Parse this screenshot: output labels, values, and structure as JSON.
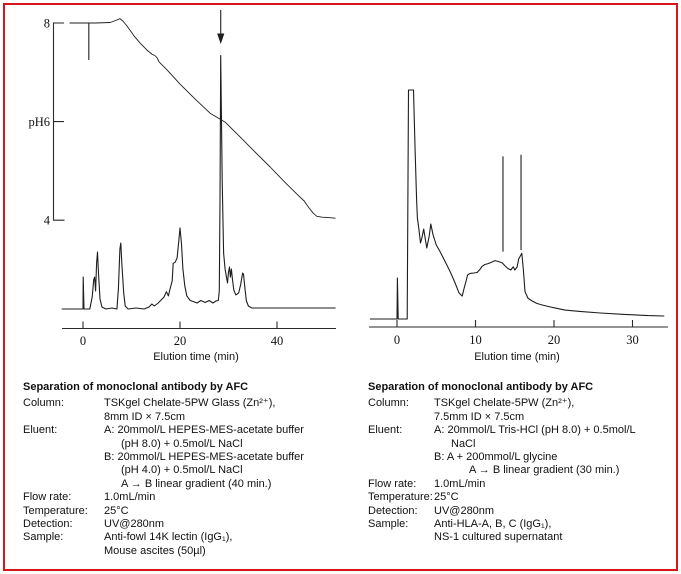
{
  "frame": {
    "border_color": "#d8161a"
  },
  "chart_data": [
    {
      "type": "line",
      "title": "",
      "xlabel": "Elution time (min)",
      "x_ticks": [
        0,
        20,
        40
      ],
      "x_tick_labels": [
        "0",
        "20",
        "40"
      ],
      "x_range": [
        -4.3,
        52
      ],
      "ylabel": "",
      "y_units": "UV@280nm relative absorbance (0-100, arbitrary)",
      "grid": false,
      "ph_axis": {
        "range": [
          4,
          8
        ],
        "tick_values": [
          8,
          6,
          4
        ],
        "tick_labels": [
          "8",
          "pH6",
          "4"
        ]
      },
      "series": [
        {
          "name": "uv-280nm-trace",
          "points": [
            [
              -4.3,
              0
            ],
            [
              -0.6,
              0
            ],
            [
              0,
              0
            ],
            [
              0.05,
              12.7
            ],
            [
              0.2,
              0
            ],
            [
              1.4,
              0
            ],
            [
              1.9,
              4.8
            ],
            [
              2.2,
              11.6
            ],
            [
              2.4,
              12.7
            ],
            [
              2.6,
              7.2
            ],
            [
              2.8,
              18.3
            ],
            [
              3.0,
              22.7
            ],
            [
              3.2,
              14.3
            ],
            [
              3.5,
              4.0
            ],
            [
              3.9,
              0.8
            ],
            [
              4.7,
              0
            ],
            [
              6.0,
              0.4
            ],
            [
              7.0,
              0
            ],
            [
              7.3,
              8.0
            ],
            [
              7.6,
              23.9
            ],
            [
              7.8,
              26.3
            ],
            [
              8.0,
              18.3
            ],
            [
              8.4,
              6.4
            ],
            [
              8.7,
              1.2
            ],
            [
              9.3,
              0
            ],
            [
              10.9,
              0.4
            ],
            [
              12.6,
              0
            ],
            [
              13.6,
              0.8
            ],
            [
              14.2,
              2.0
            ],
            [
              14.7,
              1.2
            ],
            [
              15.5,
              2.4
            ],
            [
              16.1,
              3.6
            ],
            [
              16.7,
              4.8
            ],
            [
              17.2,
              6.9
            ],
            [
              17.6,
              5.2
            ],
            [
              17.9,
              7.6
            ],
            [
              18.4,
              11.2
            ],
            [
              18.6,
              18.2
            ],
            [
              19.0,
              18.6
            ],
            [
              19.4,
              20.3
            ],
            [
              19.7,
              25.9
            ],
            [
              20.0,
              32.3
            ],
            [
              20.3,
              25.9
            ],
            [
              20.6,
              15.9
            ],
            [
              21.0,
              9.2
            ],
            [
              21.4,
              5.2
            ],
            [
              22.1,
              3.4
            ],
            [
              22.7,
              3.0
            ],
            [
              23.5,
              2.4
            ],
            [
              24.3,
              3.4
            ],
            [
              25.2,
              2.6
            ],
            [
              26.0,
              3.4
            ],
            [
              26.8,
              2.4
            ],
            [
              27.4,
              3.2
            ],
            [
              27.9,
              3.4
            ],
            [
              28.1,
              7.2
            ],
            [
              28.25,
              43.0
            ],
            [
              28.4,
              101.0
            ],
            [
              28.7,
              51.0
            ],
            [
              29.0,
              22.3
            ],
            [
              29.3,
              15.9
            ],
            [
              29.6,
              12.4
            ],
            [
              29.8,
              10.4
            ],
            [
              30.0,
              14.7
            ],
            [
              30.2,
              16.7
            ],
            [
              30.4,
              12.7
            ],
            [
              30.6,
              15.9
            ],
            [
              30.8,
              12.0
            ],
            [
              31.1,
              7.6
            ],
            [
              31.5,
              5.6
            ],
            [
              32.1,
              6.4
            ],
            [
              32.5,
              9.6
            ],
            [
              32.9,
              14.3
            ],
            [
              33.1,
              13.9
            ],
            [
              33.4,
              8.0
            ],
            [
              33.7,
              3.2
            ],
            [
              34.1,
              1.2
            ],
            [
              34.8,
              0.4
            ],
            [
              36.9,
              0.4
            ],
            [
              41.6,
              0.4
            ],
            [
              46.8,
              0.4
            ],
            [
              52.0,
              0.4
            ]
          ]
        },
        {
          "name": "ph-gradient-trace",
          "ph_points": [
            [
              -2.7,
              8.0
            ],
            [
              2.5,
              8.0
            ],
            [
              5.6,
              8.01
            ],
            [
              7.0,
              8.06
            ],
            [
              7.6,
              8.09
            ],
            [
              8.2,
              8.04
            ],
            [
              8.9,
              7.96
            ],
            [
              9.5,
              7.88
            ],
            [
              10.5,
              7.74
            ],
            [
              11.8,
              7.59
            ],
            [
              13.2,
              7.45
            ],
            [
              14.2,
              7.37
            ],
            [
              14.8,
              7.34
            ],
            [
              15.3,
              7.29
            ],
            [
              15.7,
              7.21
            ],
            [
              16.3,
              7.15
            ],
            [
              17.5,
              7.03
            ],
            [
              20.0,
              6.76
            ],
            [
              23.1,
              6.46
            ],
            [
              26.2,
              6.17
            ],
            [
              29.3,
              5.99
            ],
            [
              32.4,
              5.69
            ],
            [
              35.5,
              5.38
            ],
            [
              38.6,
              5.08
            ],
            [
              41.6,
              4.77
            ],
            [
              44.3,
              4.51
            ],
            [
              45.6,
              4.39
            ],
            [
              46.6,
              4.25
            ],
            [
              47.4,
              4.15
            ],
            [
              48.2,
              4.08
            ],
            [
              49.3,
              4.06
            ],
            [
              50.9,
              4.05
            ],
            [
              52.0,
              4.04
            ]
          ]
        }
      ],
      "annotations": {
        "peak_arrow_time": 28.4,
        "injection_tick": {
          "time": 1.2,
          "ph_from": 8.0,
          "ph_to": 7.25
        }
      }
    },
    {
      "type": "line",
      "title": "",
      "xlabel": "Elution time (min)",
      "x_ticks": [
        0,
        10,
        20,
        30
      ],
      "x_tick_labels": [
        "0",
        "10",
        "20",
        "30"
      ],
      "x_range": [
        -3.4,
        34
      ],
      "ylabel": "",
      "y_units": "UV@280nm relative absorbance (0-100, arbitrary)",
      "grid": false,
      "series": [
        {
          "name": "uv-280nm-trace",
          "points": [
            [
              -3.4,
              0
            ],
            [
              -0.1,
              0
            ],
            [
              0,
              0
            ],
            [
              0.05,
              17.9
            ],
            [
              0.15,
              0
            ],
            [
              1.3,
              0
            ],
            [
              1.47,
              100
            ],
            [
              2.1,
              100
            ],
            [
              2.3,
              73.8
            ],
            [
              2.5,
              52.0
            ],
            [
              2.6,
              44.1
            ],
            [
              2.8,
              38.9
            ],
            [
              3.0,
              33.2
            ],
            [
              3.2,
              35.8
            ],
            [
              3.4,
              39.3
            ],
            [
              3.6,
              34.9
            ],
            [
              3.8,
              31.0
            ],
            [
              4.1,
              36.2
            ],
            [
              4.3,
              41.5
            ],
            [
              4.6,
              36.7
            ],
            [
              5.0,
              32.3
            ],
            [
              5.5,
              29.3
            ],
            [
              6.1,
              25.3
            ],
            [
              6.8,
              20.5
            ],
            [
              7.4,
              15.7
            ],
            [
              7.9,
              11.4
            ],
            [
              8.3,
              10.0
            ],
            [
              8.5,
              12.7
            ],
            [
              8.8,
              16.6
            ],
            [
              9.0,
              19.2
            ],
            [
              9.3,
              19.9
            ],
            [
              9.8,
              20.1
            ],
            [
              10.2,
              20.3
            ],
            [
              10.6,
              21.8
            ],
            [
              10.8,
              22.9
            ],
            [
              11.2,
              23.8
            ],
            [
              11.6,
              24.2
            ],
            [
              12.1,
              24.9
            ],
            [
              12.5,
              25.5
            ],
            [
              12.9,
              25.1
            ],
            [
              13.4,
              24.5
            ],
            [
              13.8,
              23.1
            ],
            [
              14.1,
              22.1
            ],
            [
              14.5,
              21.4
            ],
            [
              14.8,
              22.8
            ],
            [
              15.0,
              21.4
            ],
            [
              15.3,
              22.7
            ],
            [
              15.5,
              26.2
            ],
            [
              15.9,
              28.7
            ],
            [
              16.1,
              21.4
            ],
            [
              16.3,
              11.9
            ],
            [
              16.7,
              9.0
            ],
            [
              17.2,
              7.9
            ],
            [
              17.8,
              6.8
            ],
            [
              18.5,
              6.1
            ],
            [
              19.9,
              5.0
            ],
            [
              21.4,
              3.9
            ],
            [
              23.3,
              3.3
            ],
            [
              25.9,
              2.6
            ],
            [
              29.0,
              2.0
            ],
            [
              32.0,
              1.5
            ],
            [
              34.0,
              1.3
            ]
          ]
        }
      ],
      "annotations": {
        "fraction_markers": [
          {
            "time": 13.5,
            "i_from": 29.4,
            "i_to": 50.5
          },
          {
            "time": 15.8,
            "i_from": 30.1,
            "i_to": 51.2
          }
        ]
      }
    }
  ],
  "panels": [
    {
      "title": "Separation of monoclonal antibody by AFC",
      "rows": [
        {
          "label": "Column:",
          "lines": [
            {
              "t": "TSKgel Chelate-5PW Glass (Zn²⁺),",
              "ind": 0
            },
            {
              "t": "8mm ID × 7.5cm",
              "ind": 0
            }
          ]
        },
        {
          "label": "Eluent:",
          "lines": [
            {
              "t": "A: 20mmol/L HEPES-MES-acetate buffer",
              "ind": 0
            },
            {
              "t": "(pH 8.0) + 0.5mol/L NaCl",
              "ind": 1
            },
            {
              "t": "B: 20mmol/L HEPES-MES-acetate buffer",
              "ind": 0
            },
            {
              "t": "(pH 4.0) + 0.5mol/L NaCl",
              "ind": 1
            },
            {
              "t": "A → B linear gradient (40 min.)",
              "ind": 1
            }
          ]
        },
        {
          "label": "Flow rate:",
          "lines": [
            {
              "t": "1.0mL/min",
              "ind": 0
            }
          ]
        },
        {
          "label": "Temperature:",
          "lines": [
            {
              "t": "25°C",
              "ind": 0
            }
          ]
        },
        {
          "label": "Detection:",
          "lines": [
            {
              "t": "UV@280nm",
              "ind": 0
            }
          ]
        },
        {
          "label": "Sample:",
          "lines": [
            {
              "t": "Anti-fowl 14K lectin (IgG₁),",
              "ind": 0
            },
            {
              "t": "Mouse ascites (50µl)",
              "ind": 0
            }
          ]
        }
      ]
    },
    {
      "title": "Separation of monoclonal antibody by AFC",
      "rows": [
        {
          "label": "Column:",
          "lines": [
            {
              "t": "TSKgel Chelate-5PW (Zn²⁺),",
              "ind": 0
            },
            {
              "t": "7.5mm ID × 7.5cm",
              "ind": 0
            }
          ]
        },
        {
          "label": "Eluent:",
          "lines": [
            {
              "t": "A: 20mmol/L Tris-HCl (pH 8.0) + 0.5mol/L",
              "ind": 0
            },
            {
              "t": "NaCl",
              "ind": 1
            },
            {
              "t": "B: A + 200mmol/L glycine",
              "ind": 0
            },
            {
              "t": "A → B linear gradient (30 min.)",
              "ind": 2
            }
          ]
        },
        {
          "label": "Flow rate:",
          "lines": [
            {
              "t": "1.0mL/min",
              "ind": 0
            }
          ]
        },
        {
          "label": "Temperature:",
          "lines": [
            {
              "t": "25°C",
              "ind": 0
            }
          ]
        },
        {
          "label": "Detection:",
          "lines": [
            {
              "t": "UV@280nm",
              "ind": 0
            }
          ]
        },
        {
          "label": "Sample:",
          "lines": [
            {
              "t": "Anti-HLA-A, B, C (IgG₁),",
              "ind": 0
            },
            {
              "t": "NS-1 cultured supernatant",
              "ind": 0
            }
          ]
        }
      ]
    }
  ]
}
